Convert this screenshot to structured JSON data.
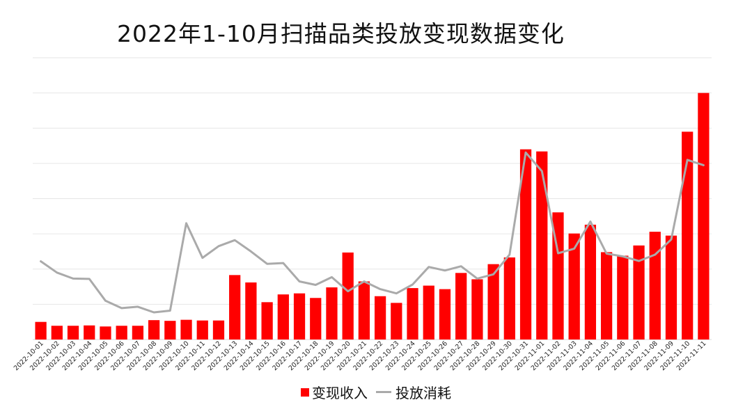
{
  "chart_data": {
    "type": "bar",
    "title": "2022年1-10月扫描品类投放变现数据变化",
    "xlabel": "",
    "ylabel": "",
    "ylim": [
      0,
      8
    ],
    "grid": true,
    "legend_position": "bottom",
    "categories": [
      "2022-10-01",
      "2022-10-02",
      "2022-10-03",
      "2022-10-04",
      "2022-10-05",
      "2022-10-06",
      "2022-10-07",
      "2022-10-08",
      "2022-10-09",
      "2022-10-10",
      "2022-10-11",
      "2022-10-12",
      "2022-10-13",
      "2022-10-14",
      "2022-10-15",
      "2022-10-16",
      "2022-10-17",
      "2022-10-18",
      "2022-10-19",
      "2022-10-20",
      "2022-10-21",
      "2022-10-22",
      "2022-10-23",
      "2022-10-24",
      "2022-10-25",
      "2022-10-26",
      "2022-10-27",
      "2022-10-28",
      "2022-10-29",
      "2022-10-30",
      "2022-10-31",
      "2022-11-01",
      "2022-11-02",
      "2022-11-03",
      "2022-11-04",
      "2022-11-05",
      "2022-11-06",
      "2022-11-07",
      "2022-11-08",
      "2022-11-09",
      "2022-11-10",
      "2022-11-11"
    ],
    "series": [
      {
        "name": "变现收入",
        "type": "bar",
        "color": "#FF0000",
        "values": [
          0.5,
          0.39,
          0.39,
          0.4,
          0.37,
          0.39,
          0.39,
          0.55,
          0.53,
          0.56,
          0.54,
          0.54,
          1.83,
          1.62,
          1.06,
          1.28,
          1.31,
          1.18,
          1.48,
          2.47,
          1.65,
          1.23,
          1.04,
          1.46,
          1.53,
          1.43,
          1.89,
          1.71,
          2.14,
          2.33,
          5.4,
          5.34,
          3.61,
          3.01,
          3.26,
          2.48,
          2.38,
          2.67,
          3.06,
          2.95,
          5.9,
          7.0
        ]
      },
      {
        "name": "投放消耗",
        "type": "line",
        "color": "#AAAAAA",
        "values": [
          2.22,
          1.9,
          1.73,
          1.72,
          1.1,
          0.89,
          0.93,
          0.77,
          0.82,
          3.3,
          2.32,
          2.65,
          2.82,
          2.5,
          2.15,
          2.17,
          1.65,
          1.55,
          1.77,
          1.37,
          1.65,
          1.43,
          1.31,
          1.56,
          2.06,
          1.96,
          2.08,
          1.73,
          1.85,
          2.41,
          5.31,
          4.78,
          2.45,
          2.58,
          3.35,
          2.44,
          2.36,
          2.23,
          2.41,
          2.84,
          5.1,
          4.95
        ]
      }
    ]
  }
}
